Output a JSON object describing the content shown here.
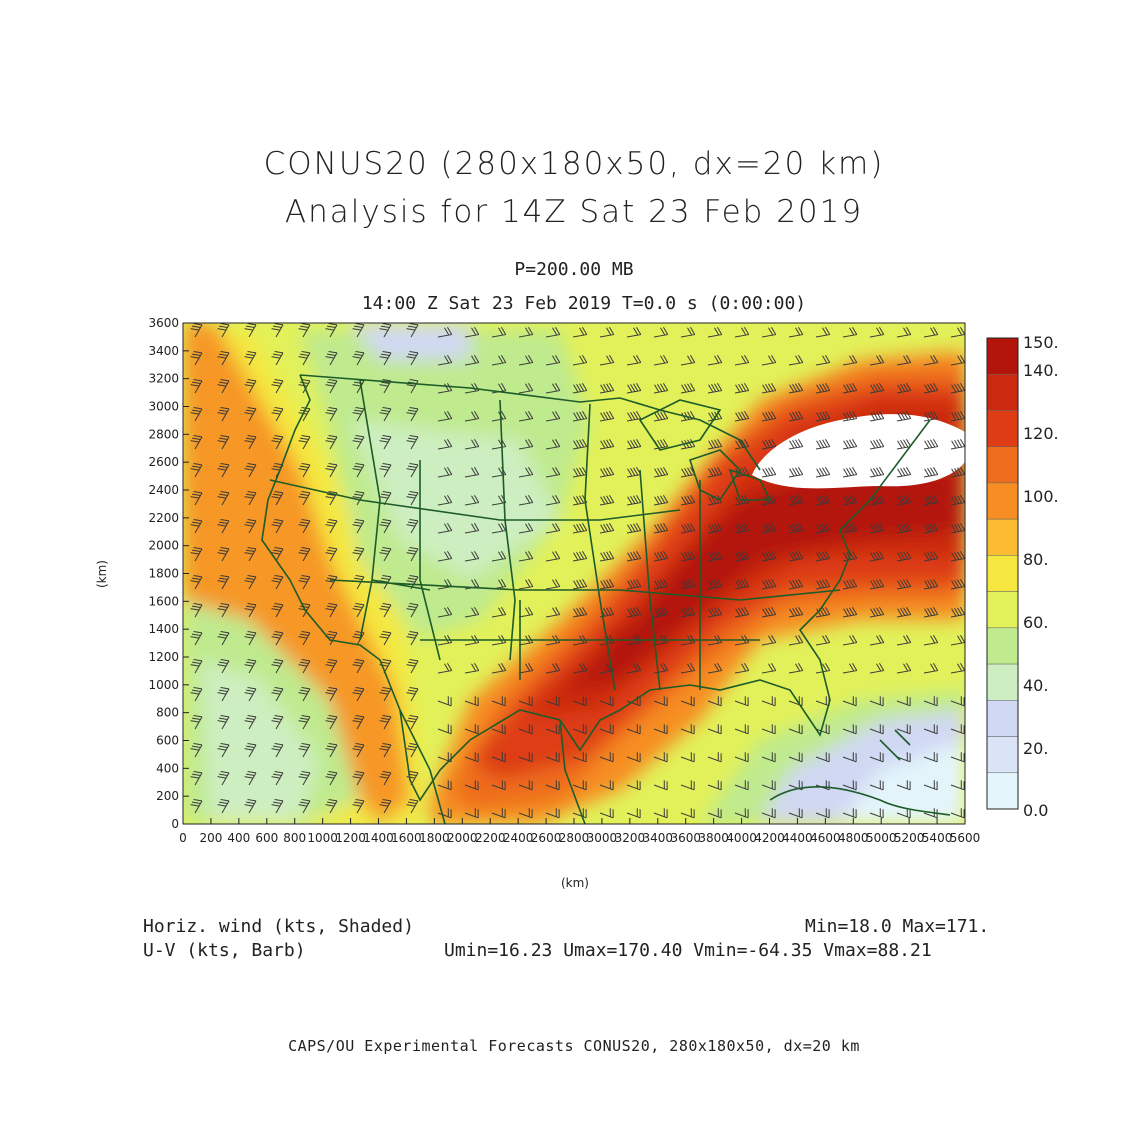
{
  "header": {
    "title_line1": "CONUS20 (280x180x50, dx=20 km)",
    "title_line2": "Analysis for 14Z Sat 23 Feb 2019",
    "level": "P=200.00 MB",
    "time": "14:00 Z Sat 23 Feb 2019    T=0.0 s (0:00:00)"
  },
  "map": {
    "region": "CONUS",
    "x_axis": {
      "label": "(km)",
      "range": [
        0,
        5600
      ],
      "ticks": [
        "0",
        "200",
        "400",
        "600",
        "800",
        "1000",
        "1200",
        "1400",
        "1600",
        "1800",
        "2000",
        "2200",
        "2400",
        "2600",
        "2800",
        "3000",
        "3200",
        "3400",
        "3600",
        "3800",
        "4000",
        "4200",
        "4400",
        "4600",
        "4800",
        "5000",
        "5200",
        "5400",
        "5600"
      ]
    },
    "y_axis": {
      "label": "(km)",
      "range": [
        0,
        3600
      ],
      "ticks": [
        "0",
        "200",
        "400",
        "600",
        "800",
        "1000",
        "1200",
        "1400",
        "1600",
        "1800",
        "2000",
        "2200",
        "2400",
        "2600",
        "2800",
        "3000",
        "3200",
        "3400",
        "3600"
      ]
    },
    "field": "wind speed",
    "jet_core_color": "#ffffff",
    "coastline_color": "#1d5b28",
    "barb_color": "#333333"
  },
  "colorbar": {
    "labels": [
      "150.",
      "140.",
      "120.",
      "100.",
      "80.",
      "60.",
      "40.",
      "20.",
      "0.0"
    ],
    "colors": [
      "#b3150b",
      "#cc2a10",
      "#de3c14",
      "#ee6d1c",
      "#f68e24",
      "#fbbc31",
      "#f5e73f",
      "#e2f15a",
      "#bfea8e",
      "#cdeec0",
      "#d0d8f3",
      "#dbe4f6",
      "#e3f5fb"
    ]
  },
  "legend": {
    "left_line1": "Horiz. wind (kts, Shaded)",
    "left_line2": "U-V (kts, Barb)",
    "right_line1": "Min=18.0 Max=171.",
    "right_line2": "Umin=16.23 Umax=170.40 Vmin=-64.35 Vmax=88.21"
  },
  "footer": "CAPS/OU Experimental Forecasts  CONUS20, 280x180x50, dx=20 km"
}
